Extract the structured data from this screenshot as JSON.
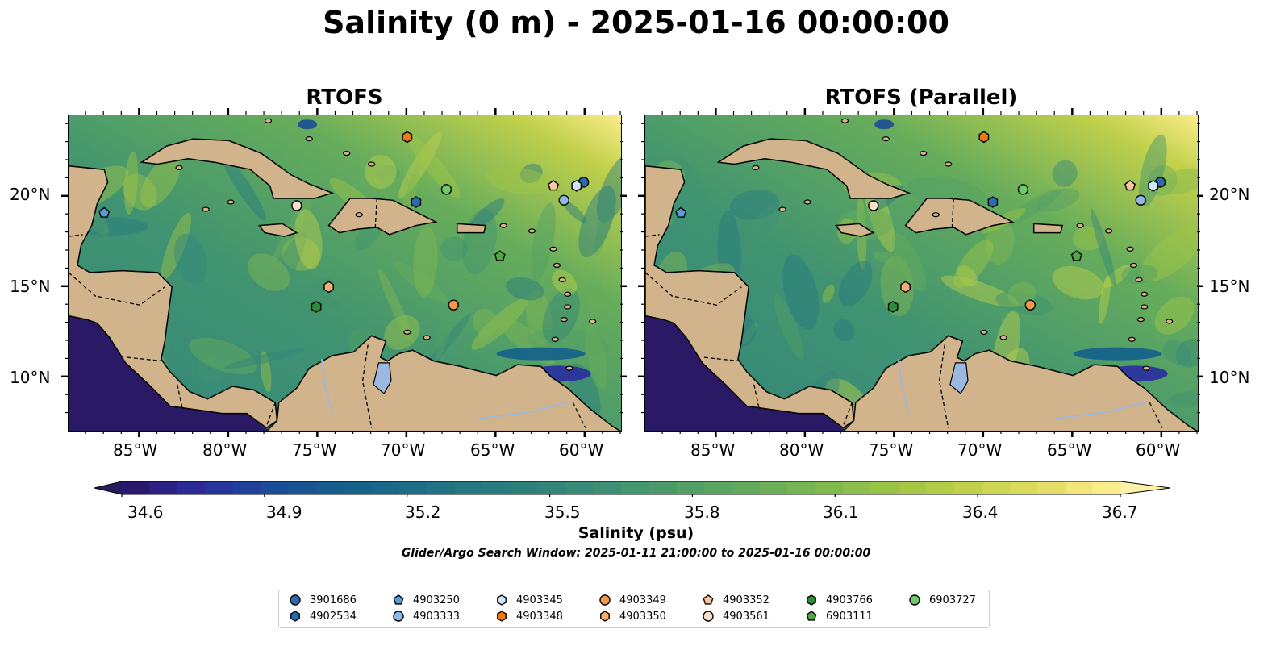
{
  "title": "Salinity (0 m) - 2025-01-16 00:00:00",
  "panels": [
    {
      "title": "RTOFS"
    },
    {
      "title": "RTOFS (Parallel)"
    }
  ],
  "lon_ticks": [
    "85°W",
    "80°W",
    "75°W",
    "70°W",
    "65°W",
    "60°W"
  ],
  "lat_ticks": [
    "20°N",
    "15°N",
    "10°N"
  ],
  "extent": {
    "lon": [
      -89,
      -58
    ],
    "lat": [
      7,
      24.5
    ]
  },
  "colorbar": {
    "label": "Salinity (psu)",
    "ticks": [
      "34.6",
      "34.9",
      "35.2",
      "35.5",
      "35.8",
      "36.1",
      "36.4",
      "36.7"
    ],
    "range": [
      34.6,
      36.7
    ],
    "colormap": "haline",
    "extend": "both"
  },
  "search_window": "Glider/Argo Search Window: 2025-01-11 21:00:00 to 2025-01-16 00:00:00",
  "colors": {
    "land": "#d2b48c",
    "lake": "#9ab8e0",
    "ocean_low": "#2a1a66",
    "ocean_high": "#fbed8a"
  },
  "legend": [
    {
      "id": "3901686",
      "marker": "circle",
      "color": "#2b6cb0"
    },
    {
      "id": "4902534",
      "marker": "hexagon",
      "color": "#2b6cb0"
    },
    {
      "id": "4903250",
      "marker": "pentagon",
      "color": "#5b9bd5"
    },
    {
      "id": "4903333",
      "marker": "circle",
      "color": "#8fb8e6"
    },
    {
      "id": "4903345",
      "marker": "hexagon",
      "color": "#cfe6fa"
    },
    {
      "id": "4903348",
      "marker": "hexagon",
      "color": "#ee7a16"
    },
    {
      "id": "4903349",
      "marker": "circle",
      "color": "#f4994a"
    },
    {
      "id": "4903350",
      "marker": "hexagon",
      "color": "#f7ad73"
    },
    {
      "id": "4903352",
      "marker": "pentagon",
      "color": "#f9c7a0"
    },
    {
      "id": "4903561",
      "marker": "circle",
      "color": "#fde0c8"
    },
    {
      "id": "4903766",
      "marker": "hexagon",
      "color": "#2e8b3a"
    },
    {
      "id": "6903111",
      "marker": "pentagon",
      "color": "#4caa3f"
    },
    {
      "id": "6903727",
      "marker": "circle",
      "color": "#6ccc6a"
    }
  ],
  "floats": [
    {
      "id": "3901686",
      "lon": -60.1,
      "lat": 20.8
    },
    {
      "id": "4902534",
      "lon": -69.5,
      "lat": 19.7
    },
    {
      "id": "4903250",
      "lon": -87.0,
      "lat": 19.1
    },
    {
      "id": "4903333",
      "lon": -61.2,
      "lat": 19.8
    },
    {
      "id": "4903345",
      "lon": -60.5,
      "lat": 20.6
    },
    {
      "id": "4903348",
      "lon": -70.0,
      "lat": 23.3
    },
    {
      "id": "4903349",
      "lon": -67.4,
      "lat": 14.0
    },
    {
      "id": "4903350",
      "lon": -74.4,
      "lat": 15.0
    },
    {
      "id": "4903352",
      "lon": -61.8,
      "lat": 20.6
    },
    {
      "id": "4903561",
      "lon": -76.2,
      "lat": 19.5
    },
    {
      "id": "4903766",
      "lon": -75.1,
      "lat": 13.9
    },
    {
      "id": "6903111",
      "lon": -64.8,
      "lat": 16.7
    },
    {
      "id": "6903727",
      "lon": -67.8,
      "lat": 20.4
    }
  ]
}
